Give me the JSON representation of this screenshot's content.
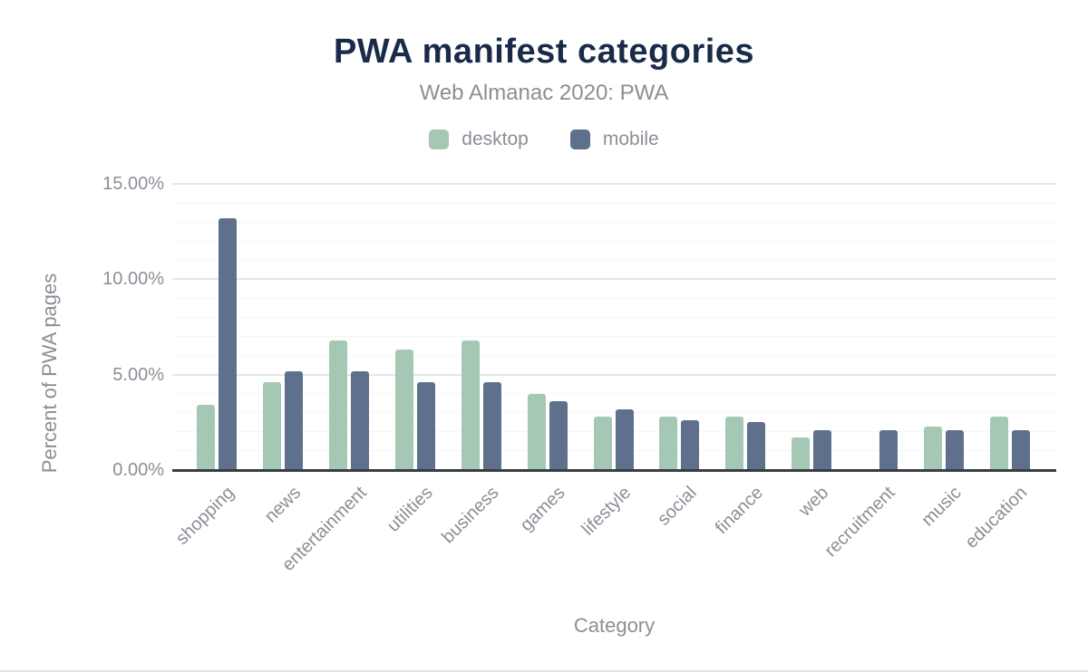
{
  "colors": {
    "title_text": "#1a2b49",
    "muted_text": "#8a8f96",
    "axis_line": "#383d44",
    "gridline_major": "#e3e6e8",
    "gridline_minor": "#f4f5f6",
    "desktop": "#a5c8b5",
    "mobile": "#5e708c"
  },
  "chart_data": {
    "type": "bar",
    "title": "PWA manifest categories",
    "subtitle": "Web Almanac 2020: PWA",
    "xlabel": "Category",
    "ylabel": "Percent of PWA pages",
    "unit": "%",
    "ylim": [
      0,
      15
    ],
    "ytick_step_major": 5,
    "ytick_step_minor": 1,
    "grid": true,
    "legend_position": "top",
    "yticks": [
      {
        "value": 0,
        "label": "0.00%"
      },
      {
        "value": 5,
        "label": "5.00%"
      },
      {
        "value": 10,
        "label": "10.00%"
      },
      {
        "value": 15,
        "label": "15.00%"
      }
    ],
    "categories": [
      "shopping",
      "news",
      "entertainment",
      "utilities",
      "business",
      "games",
      "lifestyle",
      "social",
      "finance",
      "web",
      "recruitment",
      "music",
      "education"
    ],
    "series": [
      {
        "name": "desktop",
        "color_key": "desktop",
        "values": [
          3.4,
          4.6,
          6.8,
          6.3,
          6.8,
          4.0,
          2.8,
          2.8,
          2.8,
          1.7,
          0,
          2.3,
          2.8
        ]
      },
      {
        "name": "mobile",
        "color_key": "mobile",
        "values": [
          13.2,
          5.2,
          5.2,
          4.6,
          4.6,
          3.6,
          3.2,
          2.6,
          2.5,
          2.1,
          2.1,
          2.1,
          2.1
        ]
      }
    ]
  }
}
